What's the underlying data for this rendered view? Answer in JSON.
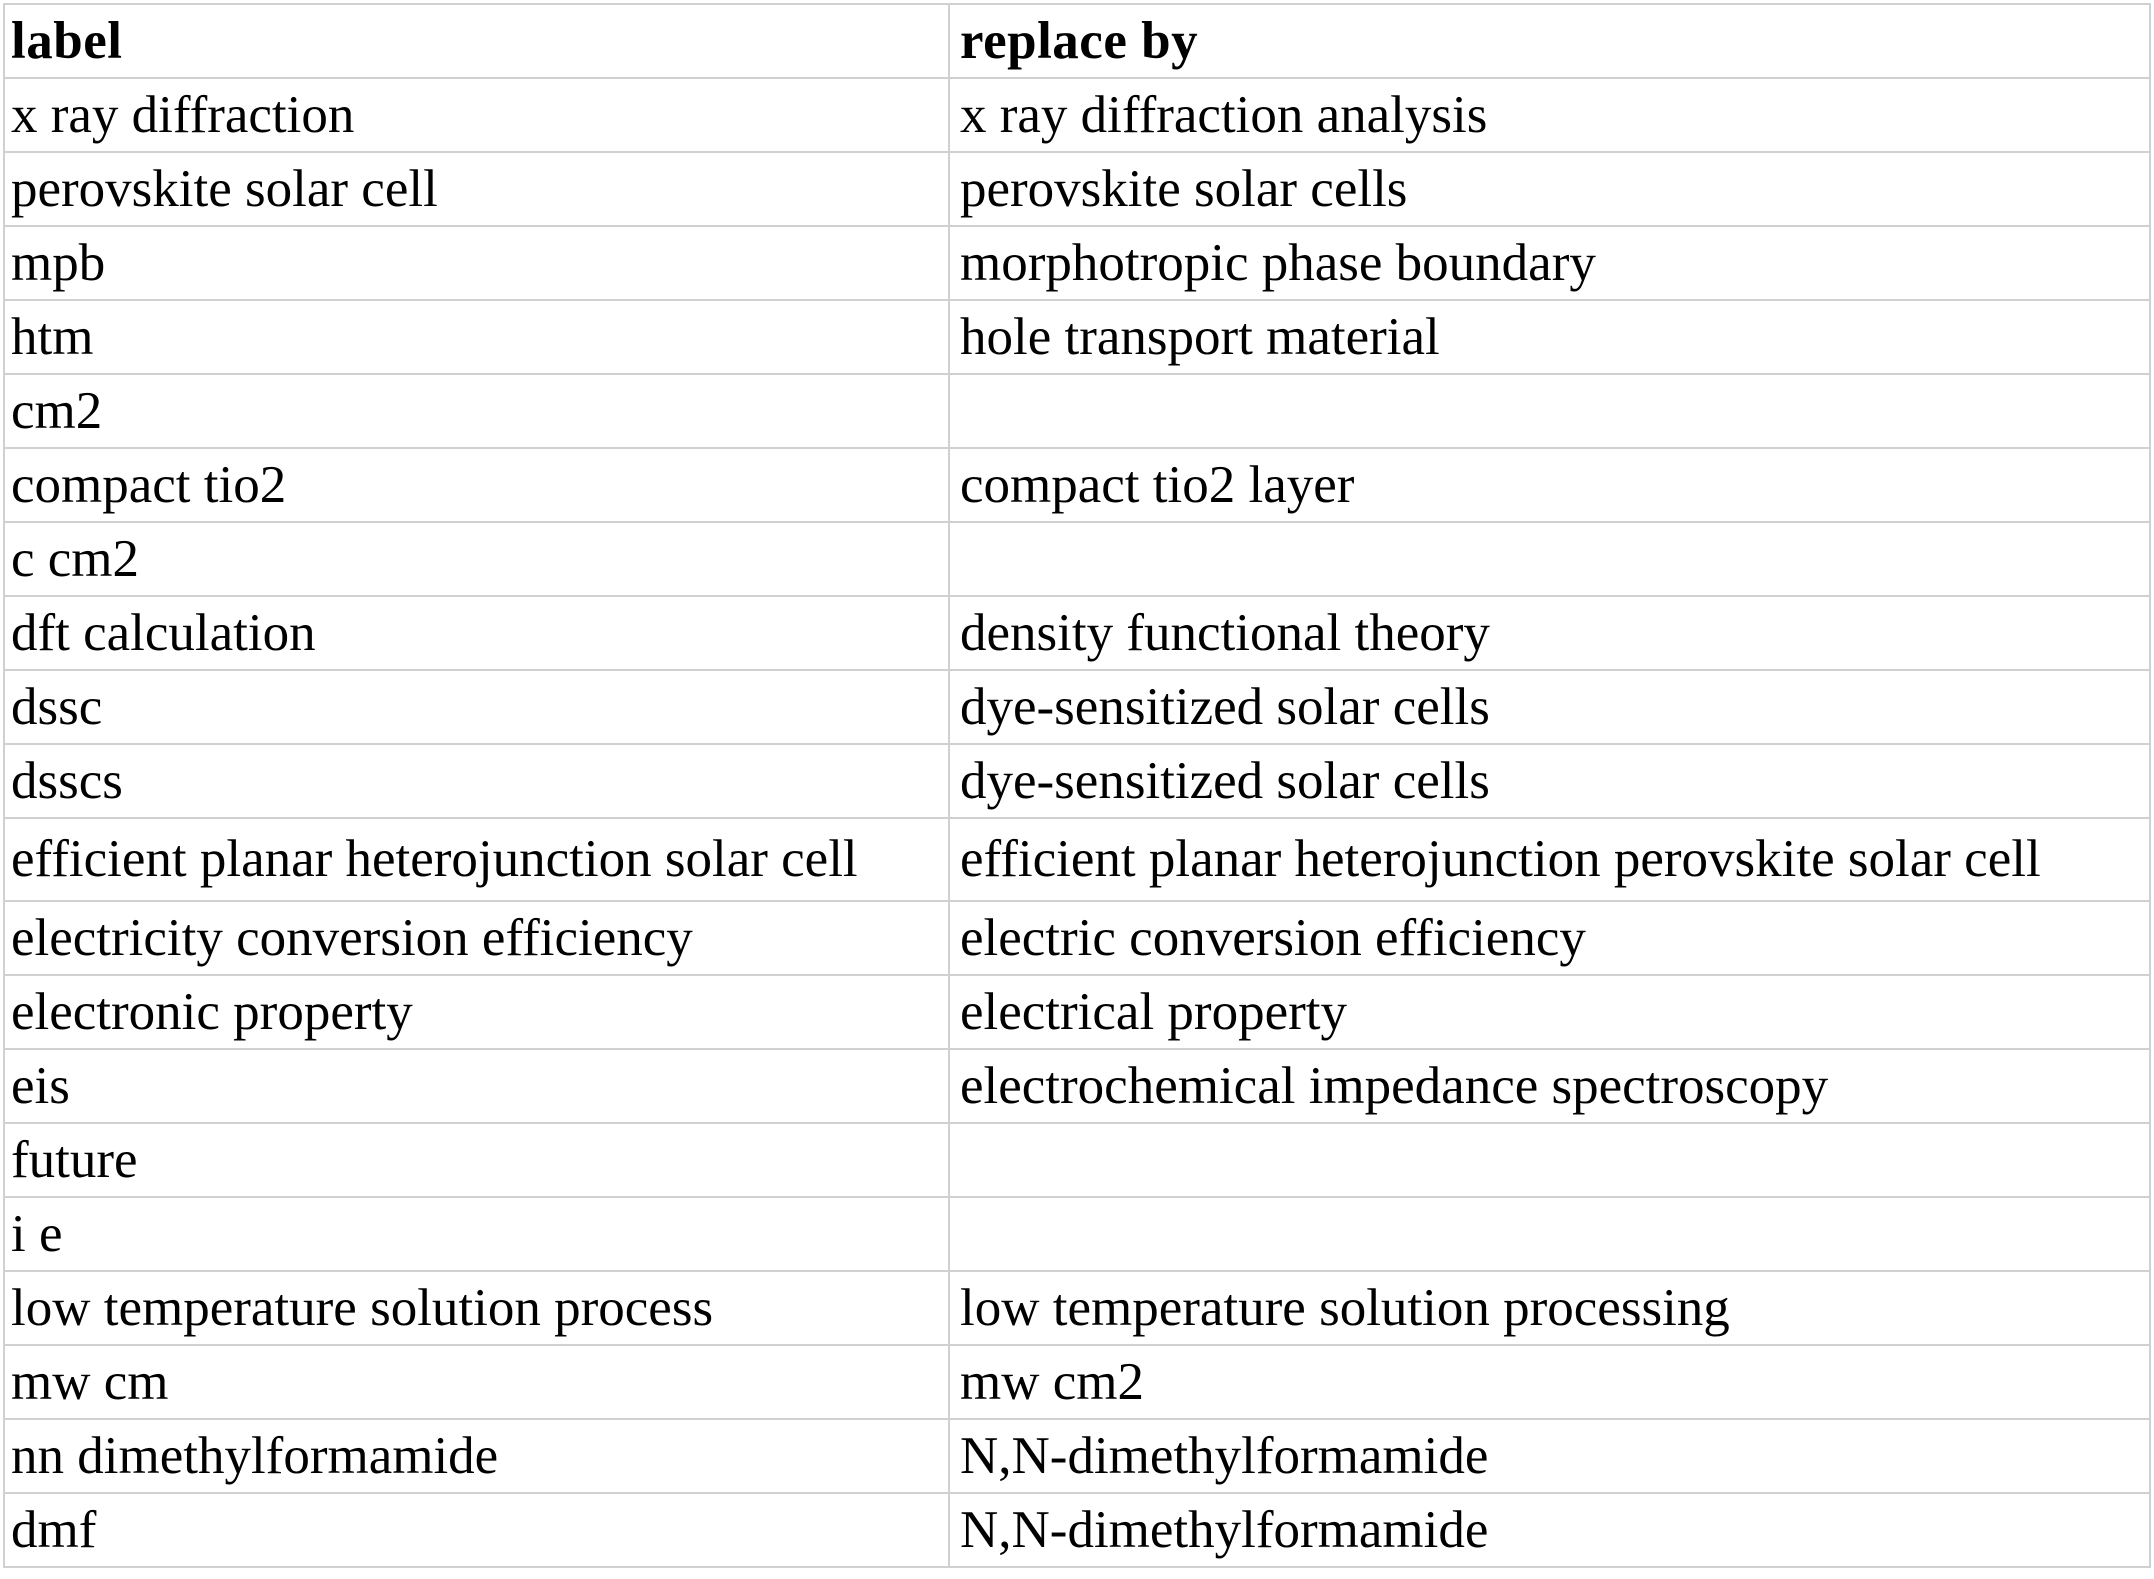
{
  "table": {
    "headers": [
      "label",
      "replace by"
    ],
    "rows": [
      [
        "x ray diffraction",
        "x ray diffraction analysis"
      ],
      [
        "perovskite solar cell",
        "perovskite solar cells"
      ],
      [
        "mpb",
        "morphotropic phase boundary"
      ],
      [
        "htm",
        "hole transport material"
      ],
      [
        "cm2",
        ""
      ],
      [
        "compact tio2",
        "compact tio2 layer"
      ],
      [
        "c cm2",
        ""
      ],
      [
        "dft calculation",
        "density functional theory"
      ],
      [
        "dssc",
        "dye-sensitized solar cells"
      ],
      [
        "dsscs",
        "dye-sensitized solar cells"
      ],
      [
        "efficient planar heterojunction solar cell",
        "efficient planar heterojunction perovskite solar cell"
      ],
      [
        "electricity conversion efficiency",
        "electric conversion efficiency"
      ],
      [
        "electronic property",
        "electrical property"
      ],
      [
        "eis",
        "electrochemical impedance spectroscopy"
      ],
      [
        "future",
        ""
      ],
      [
        "i e",
        ""
      ],
      [
        "low temperature solution process",
        "low temperature solution processing"
      ],
      [
        "mw cm",
        "mw cm2"
      ],
      [
        "nn dimethylformamide",
        "N,N-dimethylformamide"
      ],
      [
        "dmf",
        "N,N-dimethylformamide"
      ]
    ]
  }
}
